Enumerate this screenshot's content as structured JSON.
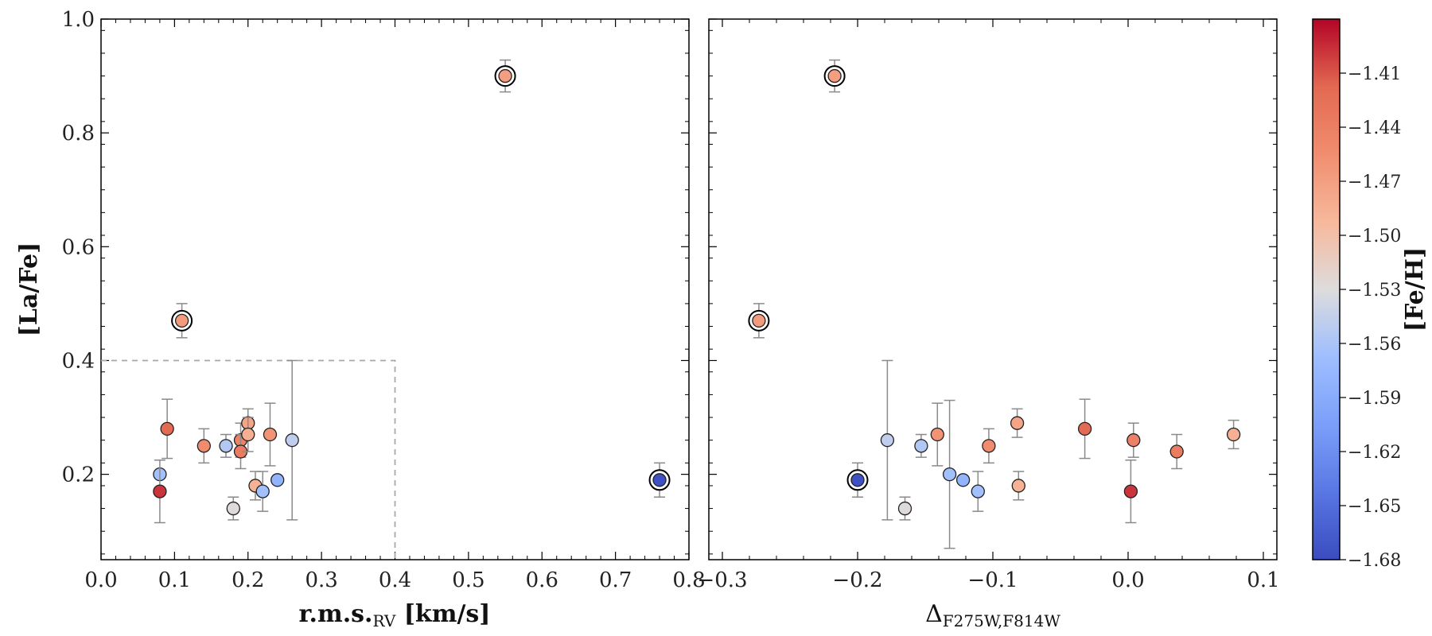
{
  "chart_data": [
    {
      "type": "scatter",
      "panel": "left",
      "xlabel_main": "r.m.s.",
      "xlabel_sub": "RV",
      "xlabel_units": " [km/s]",
      "ylabel": "[La/Fe]",
      "xlim": [
        0.0,
        0.8
      ],
      "ylim": [
        0.05,
        1.0
      ],
      "xticks": [
        "0.0",
        "0.1",
        "0.2",
        "0.3",
        "0.4",
        "0.5",
        "0.6",
        "0.7",
        "0.8"
      ],
      "yticks": [
        "0.2",
        "0.4",
        "0.6",
        "0.8",
        "1.0"
      ],
      "selection_box": {
        "x": [
          0.0,
          0.4
        ],
        "y": [
          0.05,
          0.4
        ]
      },
      "points": [
        {
          "x": 0.08,
          "y": 0.2,
          "err": 0.0,
          "feh": -1.565,
          "ringed": false
        },
        {
          "x": 0.08,
          "y": 0.17,
          "err": 0.055,
          "feh": -1.398,
          "ringed": false
        },
        {
          "x": 0.09,
          "y": 0.28,
          "err": 0.052,
          "feh": -1.42,
          "ringed": false
        },
        {
          "x": 0.11,
          "y": 0.47,
          "err": 0.03,
          "feh": -1.467,
          "ringed": true
        },
        {
          "x": 0.14,
          "y": 0.25,
          "err": 0.03,
          "feh": -1.453,
          "ringed": false
        },
        {
          "x": 0.17,
          "y": 0.25,
          "err": 0.02,
          "feh": -1.556,
          "ringed": false
        },
        {
          "x": 0.18,
          "y": 0.14,
          "err": 0.02,
          "feh": -1.528,
          "ringed": false
        },
        {
          "x": 0.19,
          "y": 0.26,
          "err": 0.03,
          "feh": -1.443,
          "ringed": false
        },
        {
          "x": 0.19,
          "y": 0.24,
          "err": 0.03,
          "feh": -1.437,
          "ringed": false
        },
        {
          "x": 0.2,
          "y": 0.29,
          "err": 0.025,
          "feh": -1.476,
          "ringed": false
        },
        {
          "x": 0.2,
          "y": 0.27,
          "err": 0.03,
          "feh": -1.485,
          "ringed": false
        },
        {
          "x": 0.21,
          "y": 0.18,
          "err": 0.025,
          "feh": -1.487,
          "ringed": false
        },
        {
          "x": 0.22,
          "y": 0.17,
          "err": 0.035,
          "feh": -1.565,
          "ringed": false
        },
        {
          "x": 0.23,
          "y": 0.27,
          "err": 0.055,
          "feh": -1.46,
          "ringed": false
        },
        {
          "x": 0.24,
          "y": 0.19,
          "err": 0.0,
          "feh": -1.58,
          "ringed": false
        },
        {
          "x": 0.26,
          "y": 0.26,
          "err": 0.14,
          "feh": -1.548,
          "ringed": false
        },
        {
          "x": 0.55,
          "y": 0.9,
          "err": 0.028,
          "feh": -1.47,
          "ringed": true
        },
        {
          "x": 0.76,
          "y": 0.19,
          "err": 0.03,
          "feh": -1.675,
          "ringed": true
        }
      ]
    },
    {
      "type": "scatter",
      "panel": "right",
      "xlabel_main": "Δ",
      "xlabel_sub": "F275W,F814W",
      "xlim": [
        -0.31,
        0.11
      ],
      "ylim": [
        0.05,
        1.0
      ],
      "xticks": [
        "−0.3",
        "−0.2",
        "−0.1",
        "0.0",
        "0.1"
      ],
      "points": [
        {
          "x": -0.273,
          "y": 0.47,
          "err": 0.03,
          "feh": -1.467,
          "ringed": true
        },
        {
          "x": -0.217,
          "y": 0.9,
          "err": 0.028,
          "feh": -1.47,
          "ringed": true
        },
        {
          "x": -0.2,
          "y": 0.19,
          "err": 0.03,
          "feh": -1.675,
          "ringed": true
        },
        {
          "x": -0.178,
          "y": 0.26,
          "err": 0.14,
          "feh": -1.548,
          "ringed": false
        },
        {
          "x": -0.165,
          "y": 0.14,
          "err": 0.02,
          "feh": -1.528,
          "ringed": false
        },
        {
          "x": -0.153,
          "y": 0.25,
          "err": 0.02,
          "feh": -1.556,
          "ringed": false
        },
        {
          "x": -0.141,
          "y": 0.27,
          "err": 0.055,
          "feh": -1.46,
          "ringed": false
        },
        {
          "x": -0.132,
          "y": 0.2,
          "err": 0.13,
          "feh": -1.565,
          "ringed": false
        },
        {
          "x": -0.122,
          "y": 0.19,
          "err": 0.0,
          "feh": -1.58,
          "ringed": false
        },
        {
          "x": -0.111,
          "y": 0.17,
          "err": 0.035,
          "feh": -1.565,
          "ringed": false
        },
        {
          "x": -0.103,
          "y": 0.25,
          "err": 0.03,
          "feh": -1.453,
          "ringed": false
        },
        {
          "x": -0.082,
          "y": 0.29,
          "err": 0.025,
          "feh": -1.476,
          "ringed": false
        },
        {
          "x": -0.081,
          "y": 0.18,
          "err": 0.025,
          "feh": -1.487,
          "ringed": false
        },
        {
          "x": -0.032,
          "y": 0.28,
          "err": 0.052,
          "feh": -1.42,
          "ringed": false
        },
        {
          "x": 0.002,
          "y": 0.17,
          "err": 0.055,
          "feh": -1.398,
          "ringed": false
        },
        {
          "x": 0.004,
          "y": 0.26,
          "err": 0.03,
          "feh": -1.443,
          "ringed": false
        },
        {
          "x": 0.036,
          "y": 0.24,
          "err": 0.03,
          "feh": -1.437,
          "ringed": false
        },
        {
          "x": 0.078,
          "y": 0.27,
          "err": 0.025,
          "feh": -1.485,
          "ringed": false
        }
      ]
    }
  ],
  "colorbar": {
    "label": "[Fe/H]",
    "range": [
      -1.68,
      -1.38
    ],
    "cmap": "coolwarm",
    "ticks": [
      "−1.41",
      "−1.44",
      "−1.47",
      "−1.50",
      "−1.53",
      "−1.56",
      "−1.59",
      "−1.62",
      "−1.65",
      "−1.68"
    ],
    "colors": {
      "low": "#3b4cc0",
      "mid": "#dddcdc",
      "high": "#b40426"
    }
  }
}
